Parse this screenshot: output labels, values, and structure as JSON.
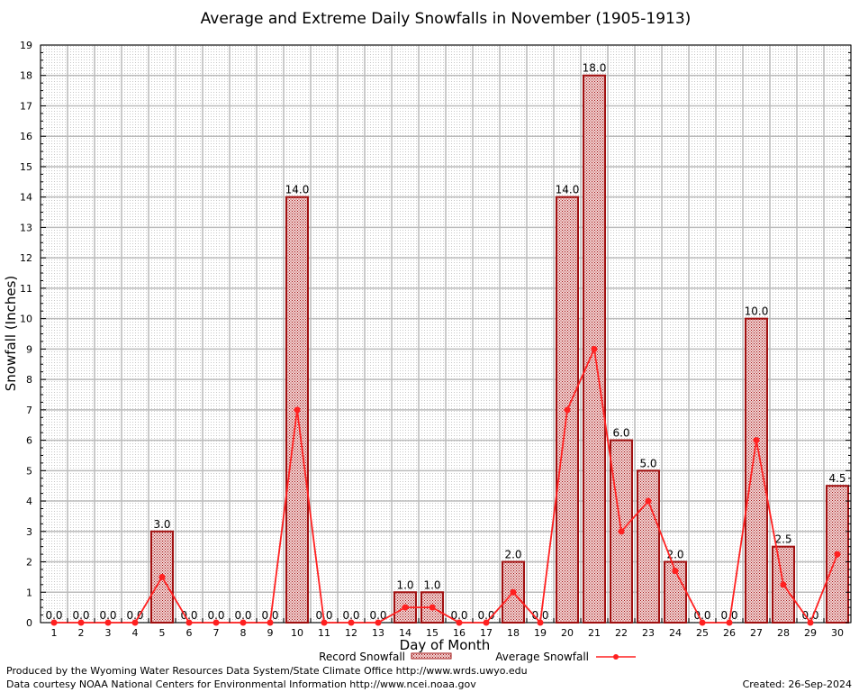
{
  "chart_data": {
    "type": "bar",
    "title": "Average and Extreme Daily Snowfalls in November (1905-1913)",
    "xlabel": "Day of Month",
    "ylabel": "Snowfall (Inches)",
    "ylim": [
      0,
      19
    ],
    "yticks": [
      "0",
      "1",
      "2",
      "3",
      "4",
      "5",
      "6",
      "7",
      "8",
      "9",
      "10",
      "11",
      "12",
      "13",
      "14",
      "15",
      "16",
      "17",
      "18",
      "19"
    ],
    "categories": [
      "1",
      "2",
      "3",
      "4",
      "5",
      "6",
      "7",
      "8",
      "9",
      "10",
      "11",
      "12",
      "13",
      "14",
      "15",
      "16",
      "17",
      "18",
      "19",
      "20",
      "21",
      "22",
      "23",
      "24",
      "25",
      "26",
      "27",
      "28",
      "29",
      "30"
    ],
    "series": [
      {
        "name": "Record Snowfall",
        "type": "bar",
        "color": "#a01010",
        "values": [
          0,
          0,
          0,
          0,
          3,
          0,
          0,
          0,
          0,
          14,
          0,
          0,
          0,
          1,
          1,
          0,
          0,
          2,
          0,
          14,
          18,
          6,
          5,
          2,
          0,
          0,
          10,
          2.5,
          0,
          4.5
        ],
        "labels": [
          "0.0",
          "0.0",
          "0.0",
          "0.0",
          "3.0",
          "0.0",
          "0.0",
          "0.0",
          "0.0",
          "14.0",
          "0.0",
          "0.0",
          "0.0",
          "1.0",
          "1.0",
          "0.0",
          "0.0",
          "2.0",
          "0.0",
          "14.0",
          "18.0",
          "6.0",
          "5.0",
          "2.0",
          "0.0",
          "0.0",
          "10.0",
          "2.5",
          "0.0",
          "4.5"
        ]
      },
      {
        "name": "Average Snowfall",
        "type": "line",
        "color": "#ff2020",
        "values": [
          0,
          0,
          0,
          0,
          1.5,
          0,
          0,
          0,
          0,
          7,
          0,
          0,
          0,
          0.5,
          0.5,
          0,
          0,
          1,
          0,
          7,
          9,
          3,
          4,
          1.7,
          0,
          0,
          6,
          1.25,
          0,
          2.25
        ]
      }
    ],
    "grid": true,
    "legend_position": "bottom-center"
  },
  "footer": {
    "produced": "Produced by the Wyoming Water Resources Data System/State Climate Office http://www.wrds.uwyo.edu",
    "courtesy": "Data courtesy NOAA National Centers for Environmental Information http://www.ncei.noaa.gov",
    "created": "Created:  26-Sep-2024"
  }
}
